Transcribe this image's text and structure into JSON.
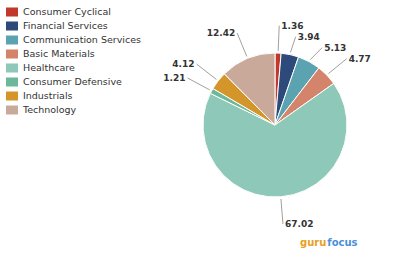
{
  "chart_data": {
    "type": "pie",
    "categories": [
      "Consumer Cyclical",
      "Financial Services",
      "Communication Services",
      "Basic Materials",
      "Healthcare",
      "Consumer Defensive",
      "Industrials",
      "Technology"
    ],
    "values": [
      1.36,
      3.94,
      5.13,
      4.77,
      67.02,
      1.21,
      4.12,
      12.42
    ],
    "colors": [
      "#c0392b",
      "#2e4a7a",
      "#5ba3b0",
      "#d4846a",
      "#8ec8b8",
      "#6db89a",
      "#d4952a",
      "#c9a99a"
    ],
    "data_labels": true,
    "legend": "upper left",
    "annotations": [
      "guru",
      "focus"
    ]
  }
}
